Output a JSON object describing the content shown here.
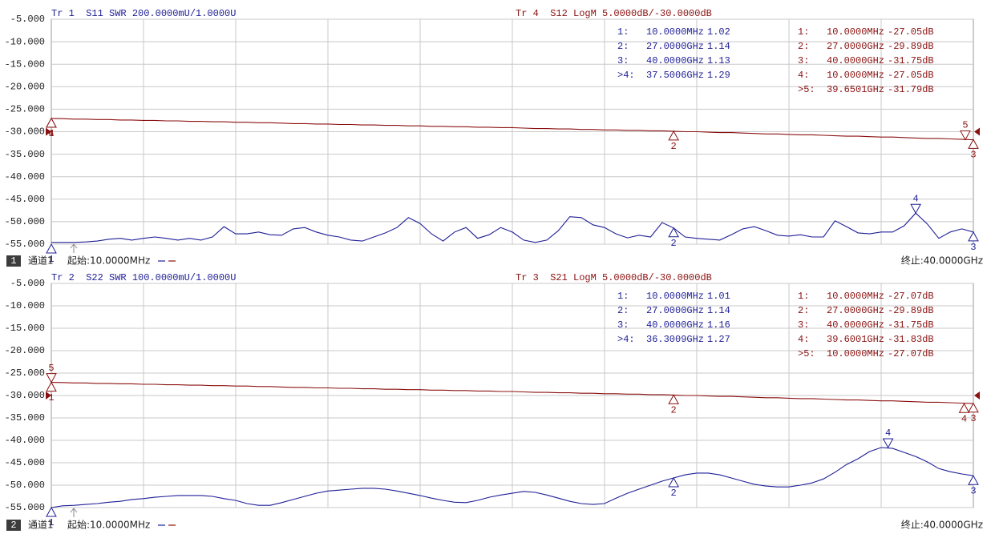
{
  "chart_data": [
    {
      "type": "line",
      "xlim": [
        0.01,
        40
      ],
      "ylim": [
        -55,
        -5
      ],
      "grid": true,
      "yticks": [
        {
          "value": -5,
          "label": "-5.000"
        },
        {
          "value": -10,
          "label": "-10.000"
        },
        {
          "value": -15,
          "label": "-15.000"
        },
        {
          "value": -20,
          "label": "-20.000"
        },
        {
          "value": -25,
          "label": "-25.000"
        },
        {
          "value": -30,
          "label": "-30.000"
        },
        {
          "value": -35,
          "label": "-35.000"
        },
        {
          "value": -40,
          "label": "-40.000"
        },
        {
          "value": -45,
          "label": "-45.000"
        },
        {
          "value": -50,
          "label": "-50.000"
        },
        {
          "value": -55,
          "label": "-55.000"
        }
      ],
      "x": [
        0.01,
        0.5,
        1,
        1.5,
        2,
        2.5,
        3,
        3.5,
        4,
        4.5,
        5,
        5.5,
        6,
        6.5,
        7,
        7.5,
        8,
        8.5,
        9,
        9.5,
        10,
        10.5,
        11,
        11.5,
        12,
        12.5,
        13,
        13.5,
        14,
        14.5,
        15,
        15.5,
        16,
        16.5,
        17,
        17.5,
        18,
        18.5,
        19,
        19.5,
        20,
        20.5,
        21,
        21.5,
        22,
        22.5,
        23,
        23.5,
        24,
        24.5,
        25,
        25.5,
        26,
        26.5,
        27,
        27.5,
        28,
        28.5,
        29,
        29.5,
        30,
        30.5,
        31,
        31.5,
        32,
        32.5,
        33,
        33.5,
        34,
        34.5,
        35,
        35.5,
        36,
        36.5,
        37,
        37.5,
        38,
        38.5,
        39,
        39.5,
        40
      ],
      "series": [
        {
          "name": "Tr 1  S11 SWR 200.0000mU/1.0000U",
          "color": "#1e1e96",
          "values": [
            -54.6,
            -54.6,
            -54.6,
            -54.5,
            -54.3,
            -53.9,
            -53.7,
            -54.1,
            -53.7,
            -53.4,
            -53.7,
            -54.1,
            -53.7,
            -54.1,
            -53.4,
            -51.1,
            -52.7,
            -52.7,
            -52.3,
            -52.9,
            -53.0,
            -51.6,
            -51.3,
            -52.3,
            -53.0,
            -53.4,
            -54.1,
            -54.3,
            -53.4,
            -52.5,
            -51.3,
            -49.1,
            -50.4,
            -52.7,
            -54.3,
            -52.3,
            -51.3,
            -53.7,
            -52.9,
            -51.3,
            -52.3,
            -54.1,
            -54.6,
            -54.1,
            -52.0,
            -48.9,
            -49.1,
            -50.7,
            -51.3,
            -52.7,
            -53.6,
            -53.0,
            -53.4,
            -50.2,
            -51.4,
            -53.4,
            -53.7,
            -53.9,
            -54.1,
            -52.9,
            -51.6,
            -51.1,
            -52.0,
            -53.0,
            -53.2,
            -52.9,
            -53.4,
            -53.4,
            -49.8,
            -51.1,
            -52.5,
            -52.7,
            -52.3,
            -52.3,
            -50.9,
            -48.1,
            -50.5,
            -53.7,
            -52.3,
            -51.6,
            -52.3
          ],
          "markers": [
            {
              "label": "1",
              "x": 0.01,
              "y": -55
            },
            {
              "label": "2",
              "x": 27,
              "y": -51.4
            },
            {
              "label": "3",
              "x": 40,
              "y": -52.3
            },
            {
              "label": "4",
              "x": 37.5006,
              "y": -48.1,
              "active": true
            }
          ],
          "marker_table": [
            [
              "1:",
              "10.0000MHz",
              "1.02"
            ],
            [
              "2:",
              "27.0000GHz",
              "1.14"
            ],
            [
              "3:",
              "40.0000GHz",
              "1.13"
            ],
            [
              ">4:",
              "37.5006GHz",
              "1.29"
            ]
          ]
        },
        {
          "name": "Tr 4  S12 LogM 5.0000dB/-30.0000dB",
          "color": "#8b1010",
          "values": [
            -27.05,
            -27.1,
            -27.2,
            -27.2,
            -27.3,
            -27.3,
            -27.4,
            -27.4,
            -27.5,
            -27.5,
            -27.6,
            -27.6,
            -27.7,
            -27.7,
            -27.8,
            -27.8,
            -27.9,
            -27.9,
            -28.0,
            -28.0,
            -28.1,
            -28.2,
            -28.2,
            -28.3,
            -28.3,
            -28.4,
            -28.4,
            -28.5,
            -28.5,
            -28.6,
            -28.6,
            -28.7,
            -28.7,
            -28.8,
            -28.8,
            -28.9,
            -28.9,
            -29.0,
            -29.0,
            -29.1,
            -29.1,
            -29.2,
            -29.3,
            -29.3,
            -29.4,
            -29.4,
            -29.5,
            -29.5,
            -29.6,
            -29.6,
            -29.7,
            -29.7,
            -29.8,
            -29.8,
            -29.9,
            -30.0,
            -30.0,
            -30.1,
            -30.2,
            -30.2,
            -30.3,
            -30.4,
            -30.5,
            -30.5,
            -30.6,
            -30.7,
            -30.7,
            -30.8,
            -30.9,
            -31.0,
            -31.0,
            -31.1,
            -31.2,
            -31.2,
            -31.3,
            -31.4,
            -31.5,
            -31.5,
            -31.6,
            -31.7,
            -31.8
          ],
          "markers": [
            {
              "label": "1",
              "x": 0.01,
              "y": -27.05
            },
            {
              "label": "2",
              "x": 27,
              "y": -29.89
            },
            {
              "label": "3",
              "x": 40,
              "y": -31.75
            },
            {
              "label": "4",
              "x": 0.01,
              "y": -27.05
            },
            {
              "label": "5",
              "x": 39.6501,
              "y": -31.79,
              "active": true
            }
          ],
          "marker_table": [
            [
              "1:",
              "10.0000MHz",
              "-27.05dB"
            ],
            [
              "2:",
              "27.0000GHz",
              "-29.89dB"
            ],
            [
              "3:",
              "40.0000GHz",
              "-31.75dB"
            ],
            [
              "4:",
              "10.0000MHz",
              "-27.05dB"
            ],
            [
              ">5:",
              "39.6501GHz",
              "-31.79dB"
            ]
          ]
        }
      ],
      "channel": "1",
      "channel_label": "通道1",
      "start": "起始:10.0000MHz",
      "stop": "终止:40.0000GHz"
    },
    {
      "type": "line",
      "xlim": [
        0.01,
        40
      ],
      "ylim": [
        -55,
        -5
      ],
      "grid": true,
      "yticks": [
        {
          "value": -5,
          "label": "-5.000"
        },
        {
          "value": -10,
          "label": "-10.000"
        },
        {
          "value": -15,
          "label": "-15.000"
        },
        {
          "value": -20,
          "label": "-20.000"
        },
        {
          "value": -25,
          "label": "-25.000"
        },
        {
          "value": -30,
          "label": "-30.000"
        },
        {
          "value": -35,
          "label": "-35.000"
        },
        {
          "value": -40,
          "label": "-40.000"
        },
        {
          "value": -45,
          "label": "-45.000"
        },
        {
          "value": -50,
          "label": "-50.000"
        },
        {
          "value": -55,
          "label": "-55.000"
        }
      ],
      "x": [
        0.01,
        0.5,
        1,
        1.5,
        2,
        2.5,
        3,
        3.5,
        4,
        4.5,
        5,
        5.5,
        6,
        6.5,
        7,
        7.5,
        8,
        8.5,
        9,
        9.5,
        10,
        10.5,
        11,
        11.5,
        12,
        12.5,
        13,
        13.5,
        14,
        14.5,
        15,
        15.5,
        16,
        16.5,
        17,
        17.5,
        18,
        18.5,
        19,
        19.5,
        20,
        20.5,
        21,
        21.5,
        22,
        22.5,
        23,
        23.5,
        24,
        24.5,
        25,
        25.5,
        26,
        26.5,
        27,
        27.5,
        28,
        28.5,
        29,
        29.5,
        30,
        30.5,
        31,
        31.5,
        32,
        32.5,
        33,
        33.5,
        34,
        34.5,
        35,
        35.5,
        36,
        36.5,
        37,
        37.5,
        38,
        38.5,
        39,
        39.5,
        40
      ],
      "series": [
        {
          "name": "Tr 2  S22 SWR 100.0000mU/1.0000U",
          "color": "#1e1e96",
          "values": [
            -55.0,
            -54.6,
            -54.5,
            -54.3,
            -54.1,
            -53.8,
            -53.6,
            -53.2,
            -53.0,
            -52.7,
            -52.5,
            -52.3,
            -52.3,
            -52.3,
            -52.5,
            -53.0,
            -53.4,
            -54.1,
            -54.5,
            -54.5,
            -53.9,
            -53.2,
            -52.5,
            -51.8,
            -51.3,
            -51.1,
            -50.9,
            -50.7,
            -50.7,
            -50.9,
            -51.3,
            -51.8,
            -52.3,
            -52.9,
            -53.4,
            -53.8,
            -53.9,
            -53.4,
            -52.7,
            -52.2,
            -51.8,
            -51.4,
            -51.6,
            -52.2,
            -52.9,
            -53.6,
            -54.1,
            -54.3,
            -54.1,
            -52.9,
            -51.8,
            -50.9,
            -50.0,
            -49.1,
            -48.4,
            -47.7,
            -47.3,
            -47.3,
            -47.7,
            -48.4,
            -49.1,
            -49.8,
            -50.2,
            -50.4,
            -50.4,
            -50.0,
            -49.5,
            -48.6,
            -47.1,
            -45.4,
            -44.1,
            -42.5,
            -41.6,
            -41.8,
            -42.7,
            -43.6,
            -44.8,
            -46.3,
            -47.0,
            -47.5,
            -47.9
          ],
          "markers": [
            {
              "label": "1",
              "x": 0.01,
              "y": -55
            },
            {
              "label": "2",
              "x": 27,
              "y": -48.4
            },
            {
              "label": "3",
              "x": 40,
              "y": -47.9
            },
            {
              "label": "4",
              "x": 36.3009,
              "y": -41.6,
              "active": true
            }
          ],
          "marker_table": [
            [
              "1:",
              "10.0000MHz",
              "1.01"
            ],
            [
              "2:",
              "27.0000GHz",
              "1.14"
            ],
            [
              "3:",
              "40.0000GHz",
              "1.16"
            ],
            [
              ">4:",
              "36.3009GHz",
              "1.27"
            ]
          ]
        },
        {
          "name": "Tr 3  S21 LogM 5.0000dB/-30.0000dB",
          "color": "#8b1010",
          "values": [
            -27.07,
            -27.1,
            -27.2,
            -27.2,
            -27.3,
            -27.3,
            -27.4,
            -27.4,
            -27.5,
            -27.5,
            -27.6,
            -27.6,
            -27.7,
            -27.7,
            -27.8,
            -27.8,
            -27.9,
            -27.9,
            -28.0,
            -28.0,
            -28.1,
            -28.2,
            -28.2,
            -28.3,
            -28.3,
            -28.4,
            -28.4,
            -28.5,
            -28.5,
            -28.6,
            -28.6,
            -28.7,
            -28.7,
            -28.8,
            -28.8,
            -28.9,
            -28.9,
            -29.0,
            -29.0,
            -29.1,
            -29.1,
            -29.2,
            -29.3,
            -29.3,
            -29.4,
            -29.4,
            -29.5,
            -29.5,
            -29.6,
            -29.6,
            -29.7,
            -29.7,
            -29.8,
            -29.8,
            -29.9,
            -30.0,
            -30.0,
            -30.1,
            -30.2,
            -30.2,
            -30.3,
            -30.4,
            -30.5,
            -30.5,
            -30.6,
            -30.7,
            -30.7,
            -30.8,
            -30.9,
            -31.0,
            -31.0,
            -31.1,
            -31.2,
            -31.2,
            -31.3,
            -31.4,
            -31.5,
            -31.5,
            -31.6,
            -31.7,
            -31.8
          ],
          "markers": [
            {
              "label": "1",
              "x": 0.01,
              "y": -27.07
            },
            {
              "label": "2",
              "x": 27,
              "y": -29.89
            },
            {
              "label": "3",
              "x": 40,
              "y": -31.75
            },
            {
              "label": "4",
              "x": 39.6001,
              "y": -31.83
            },
            {
              "label": "5",
              "x": 0.01,
              "y": -27.07,
              "active": true
            }
          ],
          "marker_table": [
            [
              "1:",
              "10.0000MHz",
              "-27.07dB"
            ],
            [
              "2:",
              "27.0000GHz",
              "-29.89dB"
            ],
            [
              "3:",
              "40.0000GHz",
              "-31.75dB"
            ],
            [
              "4:",
              "39.6001GHz",
              "-31.83dB"
            ],
            [
              ">5:",
              "10.0000MHz",
              "-27.07dB"
            ]
          ]
        }
      ],
      "channel": "2",
      "channel_label": "通道1",
      "start": "起始:10.0000MHz",
      "stop": "终止:40.0000GHz"
    }
  ]
}
